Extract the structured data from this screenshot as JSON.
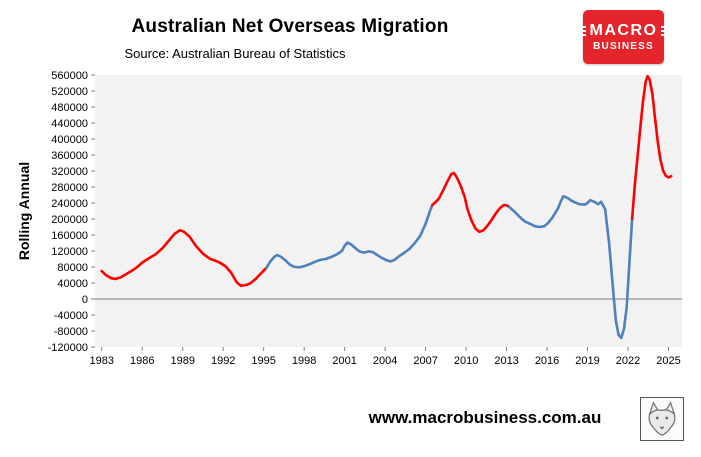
{
  "header": {
    "title": "Australian Net Overseas Migration",
    "subtitle": "Source: Australian Bureau of Statistics"
  },
  "logo": {
    "line1": "MACRO",
    "line2": "BUSINESS",
    "background_color": "#e4262c",
    "text_color": "#ffffff"
  },
  "footer": {
    "url": "www.macrobusiness.com.au"
  },
  "chart_data": {
    "type": "line",
    "title": "Australian Net Overseas Migration",
    "subtitle": "Source: Australian Bureau of Statistics",
    "xlabel": "",
    "ylabel": "Rolling Annual",
    "xlim": [
      1982.5,
      2026.0
    ],
    "ylim": [
      -120000,
      560000
    ],
    "grid": false,
    "plot_bg": "#f2f2f2",
    "zero_line_color": "#7f7f7f",
    "x_ticks": [
      1983,
      1986,
      1989,
      1992,
      1995,
      1998,
      2001,
      2004,
      2007,
      2010,
      2013,
      2016,
      2019,
      2022,
      2025
    ],
    "y_ticks": [
      560000,
      520000,
      480000,
      440000,
      400000,
      360000,
      320000,
      280000,
      240000,
      200000,
      160000,
      120000,
      80000,
      40000,
      0,
      -40000,
      -80000,
      -120000
    ],
    "colors": {
      "red": "#ff0000",
      "blue": "#4f81bd"
    },
    "segments": [
      {
        "color": "red",
        "points": [
          [
            1983.0,
            70000
          ],
          [
            1983.3,
            60000
          ],
          [
            1983.7,
            52000
          ],
          [
            1984.0,
            50000
          ],
          [
            1984.4,
            54000
          ],
          [
            1984.8,
            62000
          ],
          [
            1985.2,
            70000
          ],
          [
            1985.6,
            79000
          ],
          [
            1986.0,
            91000
          ],
          [
            1986.5,
            102000
          ],
          [
            1987.0,
            112000
          ],
          [
            1987.5,
            127000
          ],
          [
            1988.0,
            147000
          ],
          [
            1988.4,
            163000
          ],
          [
            1988.8,
            172000
          ],
          [
            1989.1,
            168000
          ],
          [
            1989.5,
            156000
          ],
          [
            1990.0,
            132000
          ],
          [
            1990.5,
            113000
          ],
          [
            1991.0,
            101000
          ],
          [
            1991.4,
            96000
          ],
          [
            1991.8,
            90000
          ],
          [
            1992.2,
            81000
          ],
          [
            1992.6,
            65000
          ],
          [
            1993.0,
            42000
          ],
          [
            1993.3,
            33000
          ],
          [
            1993.7,
            35000
          ],
          [
            1994.0,
            39000
          ],
          [
            1994.4,
            50000
          ],
          [
            1994.8,
            64000
          ],
          [
            1995.2,
            78000
          ]
        ]
      },
      {
        "color": "blue",
        "points": [
          [
            1995.2,
            78000
          ],
          [
            1995.5,
            94000
          ],
          [
            1995.8,
            106000
          ],
          [
            1996.0,
            110000
          ],
          [
            1996.3,
            105000
          ],
          [
            1996.6,
            97000
          ],
          [
            1996.9,
            87000
          ],
          [
            1997.2,
            81000
          ],
          [
            1997.6,
            79000
          ],
          [
            1998.0,
            82000
          ],
          [
            1998.4,
            87000
          ],
          [
            1998.8,
            93000
          ],
          [
            1999.2,
            98000
          ],
          [
            1999.6,
            100000
          ],
          [
            2000.0,
            105000
          ],
          [
            2000.4,
            111000
          ],
          [
            2000.8,
            120000
          ],
          [
            2001.0,
            133000
          ],
          [
            2001.2,
            141000
          ],
          [
            2001.5,
            136000
          ],
          [
            2001.8,
            127000
          ],
          [
            2002.1,
            119000
          ],
          [
            2002.4,
            116000
          ],
          [
            2002.8,
            119000
          ],
          [
            2003.1,
            117000
          ],
          [
            2003.5,
            108000
          ],
          [
            2003.8,
            102000
          ],
          [
            2004.1,
            97000
          ],
          [
            2004.4,
            94000
          ],
          [
            2004.7,
            98000
          ],
          [
            2005.0,
            106000
          ],
          [
            2005.4,
            115000
          ],
          [
            2005.8,
            125000
          ],
          [
            2006.2,
            140000
          ],
          [
            2006.6,
            158000
          ],
          [
            2007.0,
            188000
          ],
          [
            2007.3,
            218000
          ],
          [
            2007.5,
            235000
          ]
        ]
      },
      {
        "color": "red",
        "points": [
          [
            2007.5,
            235000
          ],
          [
            2007.8,
            244000
          ],
          [
            2008.0,
            252000
          ],
          [
            2008.3,
            272000
          ],
          [
            2008.6,
            293000
          ],
          [
            2008.9,
            312000
          ],
          [
            2009.1,
            315000
          ],
          [
            2009.3,
            305000
          ],
          [
            2009.6,
            283000
          ],
          [
            2009.9,
            255000
          ],
          [
            2010.1,
            225000
          ],
          [
            2010.4,
            196000
          ],
          [
            2010.7,
            176000
          ],
          [
            2011.0,
            168000
          ],
          [
            2011.3,
            172000
          ],
          [
            2011.6,
            184000
          ],
          [
            2011.9,
            198000
          ],
          [
            2012.2,
            214000
          ],
          [
            2012.5,
            227000
          ],
          [
            2012.8,
            235000
          ],
          [
            2013.0,
            234000
          ],
          [
            2013.2,
            230000
          ]
        ]
      },
      {
        "color": "blue",
        "points": [
          [
            2013.2,
            230000
          ],
          [
            2013.5,
            221000
          ],
          [
            2013.8,
            211000
          ],
          [
            2014.1,
            201000
          ],
          [
            2014.4,
            193000
          ],
          [
            2014.8,
            187000
          ],
          [
            2015.1,
            182000
          ],
          [
            2015.4,
            180000
          ],
          [
            2015.8,
            182000
          ],
          [
            2016.1,
            191000
          ],
          [
            2016.4,
            204000
          ],
          [
            2016.8,
            226000
          ],
          [
            2017.0,
            243000
          ],
          [
            2017.2,
            257000
          ],
          [
            2017.5,
            253000
          ],
          [
            2017.8,
            246000
          ],
          [
            2018.1,
            241000
          ],
          [
            2018.4,
            237000
          ],
          [
            2018.8,
            236000
          ],
          [
            2019.0,
            240000
          ],
          [
            2019.2,
            247000
          ],
          [
            2019.5,
            243000
          ],
          [
            2019.8,
            237000
          ],
          [
            2020.0,
            243000
          ],
          [
            2020.3,
            225000
          ],
          [
            2020.6,
            140000
          ],
          [
            2020.9,
            20000
          ],
          [
            2021.1,
            -55000
          ],
          [
            2021.3,
            -90000
          ],
          [
            2021.5,
            -97000
          ],
          [
            2021.7,
            -75000
          ],
          [
            2021.9,
            -20000
          ],
          [
            2022.1,
            90000
          ],
          [
            2022.3,
            200000
          ]
        ]
      },
      {
        "color": "red",
        "points": [
          [
            2022.3,
            200000
          ],
          [
            2022.5,
            285000
          ],
          [
            2022.7,
            355000
          ],
          [
            2022.9,
            425000
          ],
          [
            2023.1,
            492000
          ],
          [
            2023.3,
            543000
          ],
          [
            2023.45,
            557000
          ],
          [
            2023.6,
            549000
          ],
          [
            2023.8,
            514000
          ],
          [
            2024.0,
            453000
          ],
          [
            2024.2,
            394000
          ],
          [
            2024.4,
            349000
          ],
          [
            2024.6,
            321000
          ],
          [
            2024.8,
            308000
          ],
          [
            2025.0,
            304000
          ],
          [
            2025.2,
            307000
          ]
        ]
      }
    ]
  }
}
